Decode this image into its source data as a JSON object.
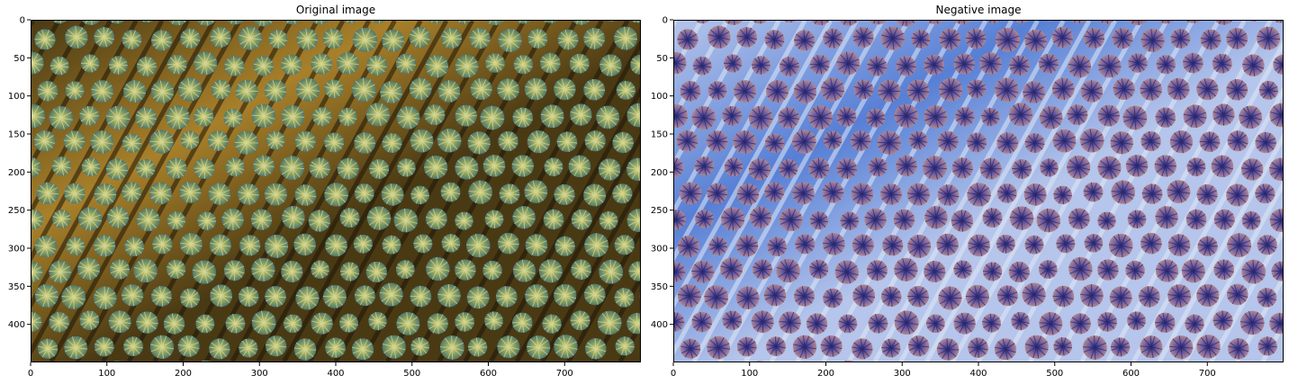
{
  "panels": [
    {
      "title": "Original image",
      "x_ticks": [
        "0",
        "100",
        "200",
        "300",
        "400",
        "500",
        "600",
        "700"
      ],
      "y_ticks": [
        "0",
        "50",
        "100",
        "150",
        "200",
        "250",
        "300",
        "350",
        "400"
      ],
      "image_width": 800,
      "image_height": 450,
      "palette": {
        "background": "#4a3a14",
        "band": "#a8802a",
        "shadow": "#1e1608",
        "tree_outer": "#8aa060",
        "tree_inner": "#d8d890",
        "tree_edge": "#4f7870"
      }
    },
    {
      "title": "Negative image",
      "x_ticks": [
        "0",
        "100",
        "200",
        "300",
        "400",
        "500",
        "600",
        "700"
      ],
      "y_ticks": [
        "0",
        "50",
        "100",
        "150",
        "200",
        "250",
        "300",
        "350",
        "400"
      ],
      "image_width": 800,
      "image_height": 450,
      "palette": {
        "background": "#b5c5eb",
        "band": "#577fd5",
        "shadow": "#e1e9f7",
        "tree_outer": "#755f9f",
        "tree_inner": "#27276f",
        "tree_edge": "#b0878f"
      }
    }
  ]
}
